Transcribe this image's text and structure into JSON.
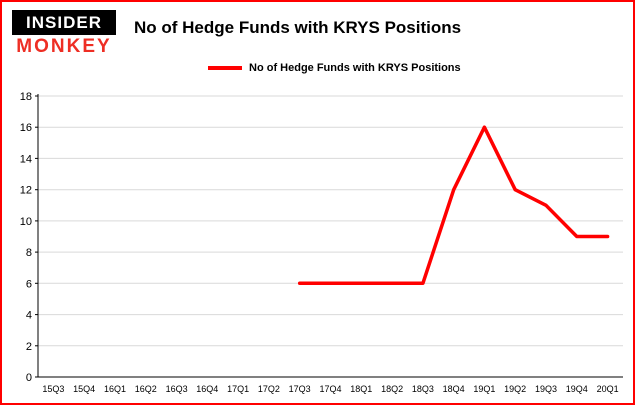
{
  "logo": {
    "line1": "INSIDER",
    "line2": "MONKEY"
  },
  "header": {
    "title": "No of Hedge Funds with KRYS Positions"
  },
  "legend": {
    "label": "No of Hedge Funds with KRYS Positions",
    "color": "#ff0000"
  },
  "colors": {
    "accent": "#ff0000",
    "grid": "#d9d9d9",
    "axis": "#000000",
    "tick_text": "#000000",
    "border": "#ff0000"
  },
  "chart_data": {
    "type": "line",
    "title": "No of Hedge Funds with KRYS Positions",
    "categories": [
      "15Q3",
      "15Q4",
      "16Q1",
      "16Q2",
      "16Q3",
      "16Q4",
      "17Q1",
      "17Q2",
      "17Q3",
      "17Q4",
      "18Q1",
      "18Q2",
      "18Q3",
      "18Q4",
      "19Q1",
      "19Q2",
      "19Q3",
      "19Q4",
      "20Q1"
    ],
    "series": [
      {
        "name": "No of Hedge Funds with KRYS Positions",
        "color": "#ff0000",
        "values": [
          null,
          null,
          null,
          null,
          null,
          null,
          null,
          null,
          6,
          6,
          6,
          6,
          6,
          12,
          16,
          12,
          11,
          9,
          9
        ]
      }
    ],
    "xlabel": "",
    "ylabel": "",
    "ylim": [
      0,
      18
    ],
    "ytick_step": 2,
    "grid": true,
    "legend_position": "top"
  }
}
